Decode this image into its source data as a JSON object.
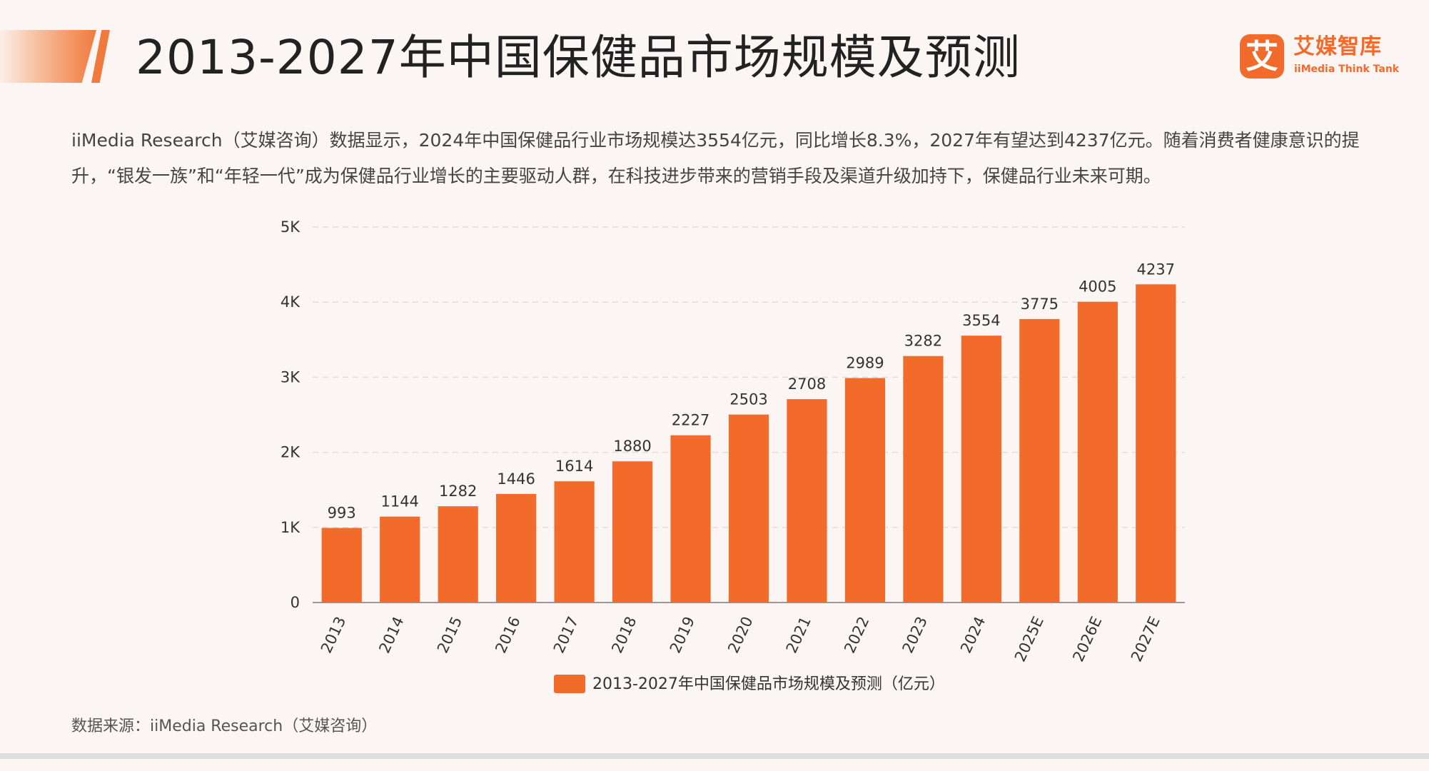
{
  "header": {
    "title": "2013-2027年中国保健品市场规模及预测",
    "logo_mark": "艾",
    "logo_cn": "艾媒智库",
    "logo_en": "iiMedia Think Tank"
  },
  "description": "iiMedia Research（艾媒咨询）数据显示，2024年中国保健品行业市场规模达3554亿元，同比增长8.3%，2027年有望达到4237亿元。随着消费者健康意识的提升，“银发一族”和“年轻一代”成为保健品行业增长的主要驱动人群，在科技进步带来的营销手段及渠道升级加持下，保健品行业未来可期。",
  "source": "数据来源：iiMedia Research（艾媒咨询）",
  "colors": {
    "bar": "#f26b2a",
    "accent": "#f07a3e"
  },
  "chart_data": {
    "type": "bar",
    "categories": [
      "2013",
      "2014",
      "2015",
      "2016",
      "2017",
      "2018",
      "2019",
      "2020",
      "2021",
      "2022",
      "2023",
      "2024",
      "2025E",
      "2026E",
      "2027E"
    ],
    "series": [
      {
        "name": "2013-2027年中国保健品市场规模及预测（亿元）",
        "values": [
          993,
          1144,
          1282,
          1446,
          1614,
          1880,
          2227,
          2503,
          2708,
          2989,
          3282,
          3554,
          3775,
          4005,
          4237
        ]
      }
    ],
    "ylim": [
      0,
      5000
    ],
    "yticks": [
      0,
      1000,
      2000,
      3000,
      4000,
      5000
    ],
    "ytick_labels": [
      "0",
      "1K",
      "2K",
      "3K",
      "4K",
      "5K"
    ],
    "xlabel": "",
    "ylabel": "",
    "grid": true,
    "legend_position": "bottom-center"
  }
}
